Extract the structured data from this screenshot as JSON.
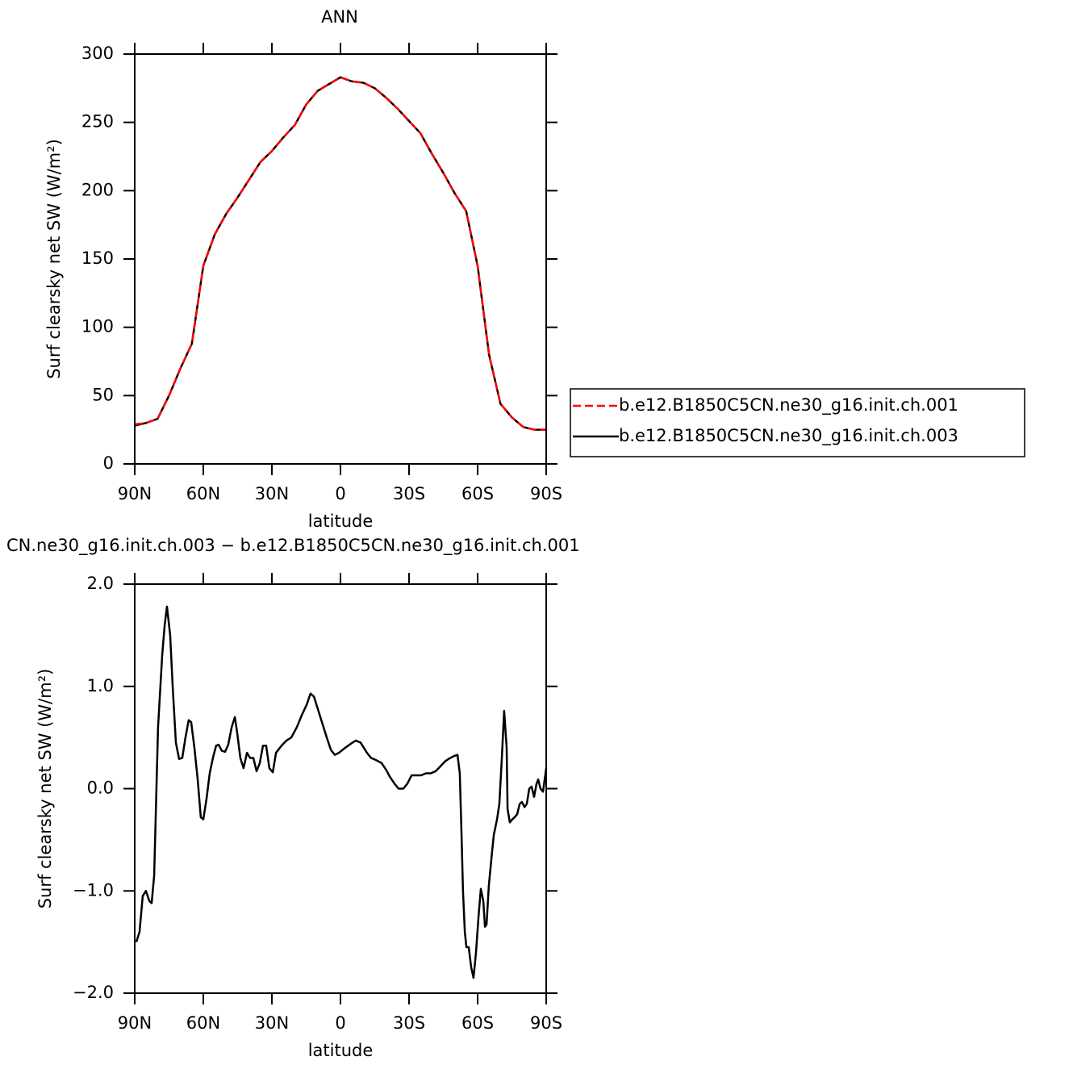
{
  "chart_data": [
    {
      "type": "line",
      "title": "ANN",
      "xlabel": "latitude",
      "ylabel": "Surf clearsky net SW (W/m²)",
      "x": [
        90,
        85,
        80,
        75,
        70,
        65,
        60,
        55,
        50,
        45,
        40,
        35,
        30,
        25,
        20,
        15,
        10,
        5,
        0,
        -5,
        -10,
        -15,
        -20,
        -25,
        -30,
        -35,
        -40,
        -45,
        -50,
        -55,
        -60,
        -65,
        -70,
        -75,
        -80,
        -85,
        -90
      ],
      "series": [
        {
          "name": "b.e12.B1850C5CN.ne30_g16.init.ch.001",
          "color": "#ff0000",
          "dash": true,
          "values": [
            29,
            30,
            33,
            50,
            70,
            88,
            145,
            168,
            183,
            195,
            208,
            221,
            229,
            239,
            248,
            263,
            273,
            278,
            283,
            280,
            279,
            275,
            268,
            260,
            251,
            242,
            227,
            213,
            198,
            185,
            145,
            80,
            44,
            34,
            27,
            25,
            25
          ]
        },
        {
          "name": "b.e12.B1850C5CN.ne30_g16.init.ch.003",
          "color": "#000000",
          "dash": false,
          "values": [
            28,
            30,
            33,
            50,
            70,
            88,
            145,
            168,
            183,
            195,
            208,
            221,
            229,
            239,
            248,
            263,
            273,
            278,
            283,
            280,
            279,
            275,
            268,
            260,
            251,
            242,
            227,
            213,
            198,
            185,
            145,
            80,
            44,
            34,
            27,
            25,
            25
          ]
        }
      ],
      "xlim": [
        90,
        -90
      ],
      "xticks": [
        {
          "value": 90,
          "label": "90N"
        },
        {
          "value": 60,
          "label": "60N"
        },
        {
          "value": 30,
          "label": "30N"
        },
        0,
        {
          "value": -30,
          "label": "30S"
        },
        {
          "value": -60,
          "label": "60S"
        },
        {
          "value": -90,
          "label": "90S"
        }
      ],
      "ylim": [
        0,
        300
      ],
      "yticks": [
        0,
        50,
        100,
        150,
        200,
        250,
        300
      ],
      "legend": "right"
    },
    {
      "type": "line",
      "title": "CN.ne30_g16.init.ch.003 − b.e12.B1850C5CN.ne30_g16.init.ch.001",
      "xlabel": "latitude",
      "ylabel": "Surf clearsky net SW (W/m²)",
      "x": [
        89.3,
        87.9,
        86.5,
        85.1,
        83.6,
        82.6,
        81.5,
        79.8,
        78.0,
        76.9,
        75.9,
        74.5,
        73.4,
        72.0,
        70.6,
        69.2,
        67.8,
        66.4,
        65.3,
        63.9,
        62.5,
        61.1,
        60.0,
        58.6,
        57.2,
        55.8,
        54.4,
        53.3,
        51.9,
        50.5,
        49.1,
        47.6,
        46.2,
        45.2,
        43.8,
        42.4,
        40.9,
        39.5,
        38.1,
        36.7,
        35.3,
        33.9,
        32.5,
        31.1,
        29.6,
        28.2,
        25.8,
        23.6,
        21.5,
        19.1,
        16.9,
        14.8,
        13.1,
        11.6,
        10.2,
        8.1,
        6.0,
        4.2,
        2.5,
        0.7,
        -2.1,
        -4.6,
        -6.7,
        -8.8,
        -11.6,
        -13.4,
        -15.5,
        -18.0,
        -20.1,
        -21.5,
        -23.6,
        -25.4,
        -27.5,
        -29.3,
        -31.1,
        -33.2,
        -35.3,
        -37.4,
        -39.5,
        -41.6,
        -43.8,
        -45.9,
        -48.0,
        -49.8,
        -51.2,
        -52.2,
        -52.9,
        -53.6,
        -54.4,
        -55.1,
        -56.1,
        -57.2,
        -58.2,
        -59.3,
        -60.4,
        -61.4,
        -62.5,
        -63.2,
        -63.9,
        -64.9,
        -66.4,
        -67.1,
        -68.5,
        -69.5,
        -70.6,
        -71.6,
        -72.7,
        -73.1,
        -74.1,
        -75.2,
        -76.2,
        -77.3,
        -78.4,
        -79.4,
        -80.5,
        -81.5,
        -82.6,
        -83.6,
        -84.7,
        -85.8,
        -86.5,
        -87.5,
        -88.6,
        -90
      ],
      "series": [
        {
          "color": "#000000",
          "dash": false,
          "values": [
            -1.5,
            -1.4,
            -1.05,
            -1.0,
            -1.1,
            -1.12,
            -0.85,
            0.6,
            1.3,
            1.6,
            1.78,
            1.5,
            1.0,
            0.45,
            0.29,
            0.3,
            0.5,
            0.67,
            0.65,
            0.4,
            0.1,
            -0.28,
            -0.3,
            -0.1,
            0.15,
            0.3,
            0.42,
            0.43,
            0.37,
            0.36,
            0.43,
            0.6,
            0.7,
            0.55,
            0.3,
            0.2,
            0.35,
            0.3,
            0.3,
            0.17,
            0.25,
            0.42,
            0.42,
            0.2,
            0.16,
            0.35,
            0.42,
            0.47,
            0.5,
            0.6,
            0.72,
            0.82,
            0.93,
            0.9,
            0.8,
            0.65,
            0.5,
            0.38,
            0.33,
            0.35,
            0.4,
            0.44,
            0.47,
            0.45,
            0.35,
            0.3,
            0.28,
            0.25,
            0.18,
            0.12,
            0.05,
            0.0,
            0.0,
            0.05,
            0.13,
            0.13,
            0.13,
            0.15,
            0.15,
            0.17,
            0.22,
            0.27,
            0.3,
            0.32,
            0.33,
            0.15,
            -0.4,
            -1.0,
            -1.4,
            -1.55,
            -1.55,
            -1.75,
            -1.85,
            -1.6,
            -1.25,
            -0.98,
            -1.1,
            -1.35,
            -1.33,
            -0.95,
            -0.6,
            -0.45,
            -0.3,
            -0.15,
            0.3,
            0.76,
            0.4,
            -0.2,
            -0.33,
            -0.3,
            -0.28,
            -0.25,
            -0.15,
            -0.13,
            -0.18,
            -0.15,
            0.0,
            0.02,
            -0.08,
            0.05,
            0.09,
            0.0,
            -0.03,
            0.2
          ]
        }
      ],
      "xlim": [
        90,
        -90
      ],
      "xticks": [
        {
          "value": 90,
          "label": "90N"
        },
        {
          "value": 60,
          "label": "60N"
        },
        {
          "value": 30,
          "label": "30N"
        },
        0,
        {
          "value": -30,
          "label": "30S"
        },
        {
          "value": -60,
          "label": "60S"
        },
        {
          "value": -90,
          "label": "90S"
        }
      ],
      "ylim": [
        -2,
        2
      ],
      "yticks": [
        {
          "value": -2,
          "label": "−2.0"
        },
        {
          "value": -1,
          "label": "−1.0"
        },
        {
          "value": 0,
          "label": "0.0"
        },
        {
          "value": 1,
          "label": "1.0"
        },
        {
          "value": 2,
          "label": "2.0"
        }
      ]
    }
  ]
}
